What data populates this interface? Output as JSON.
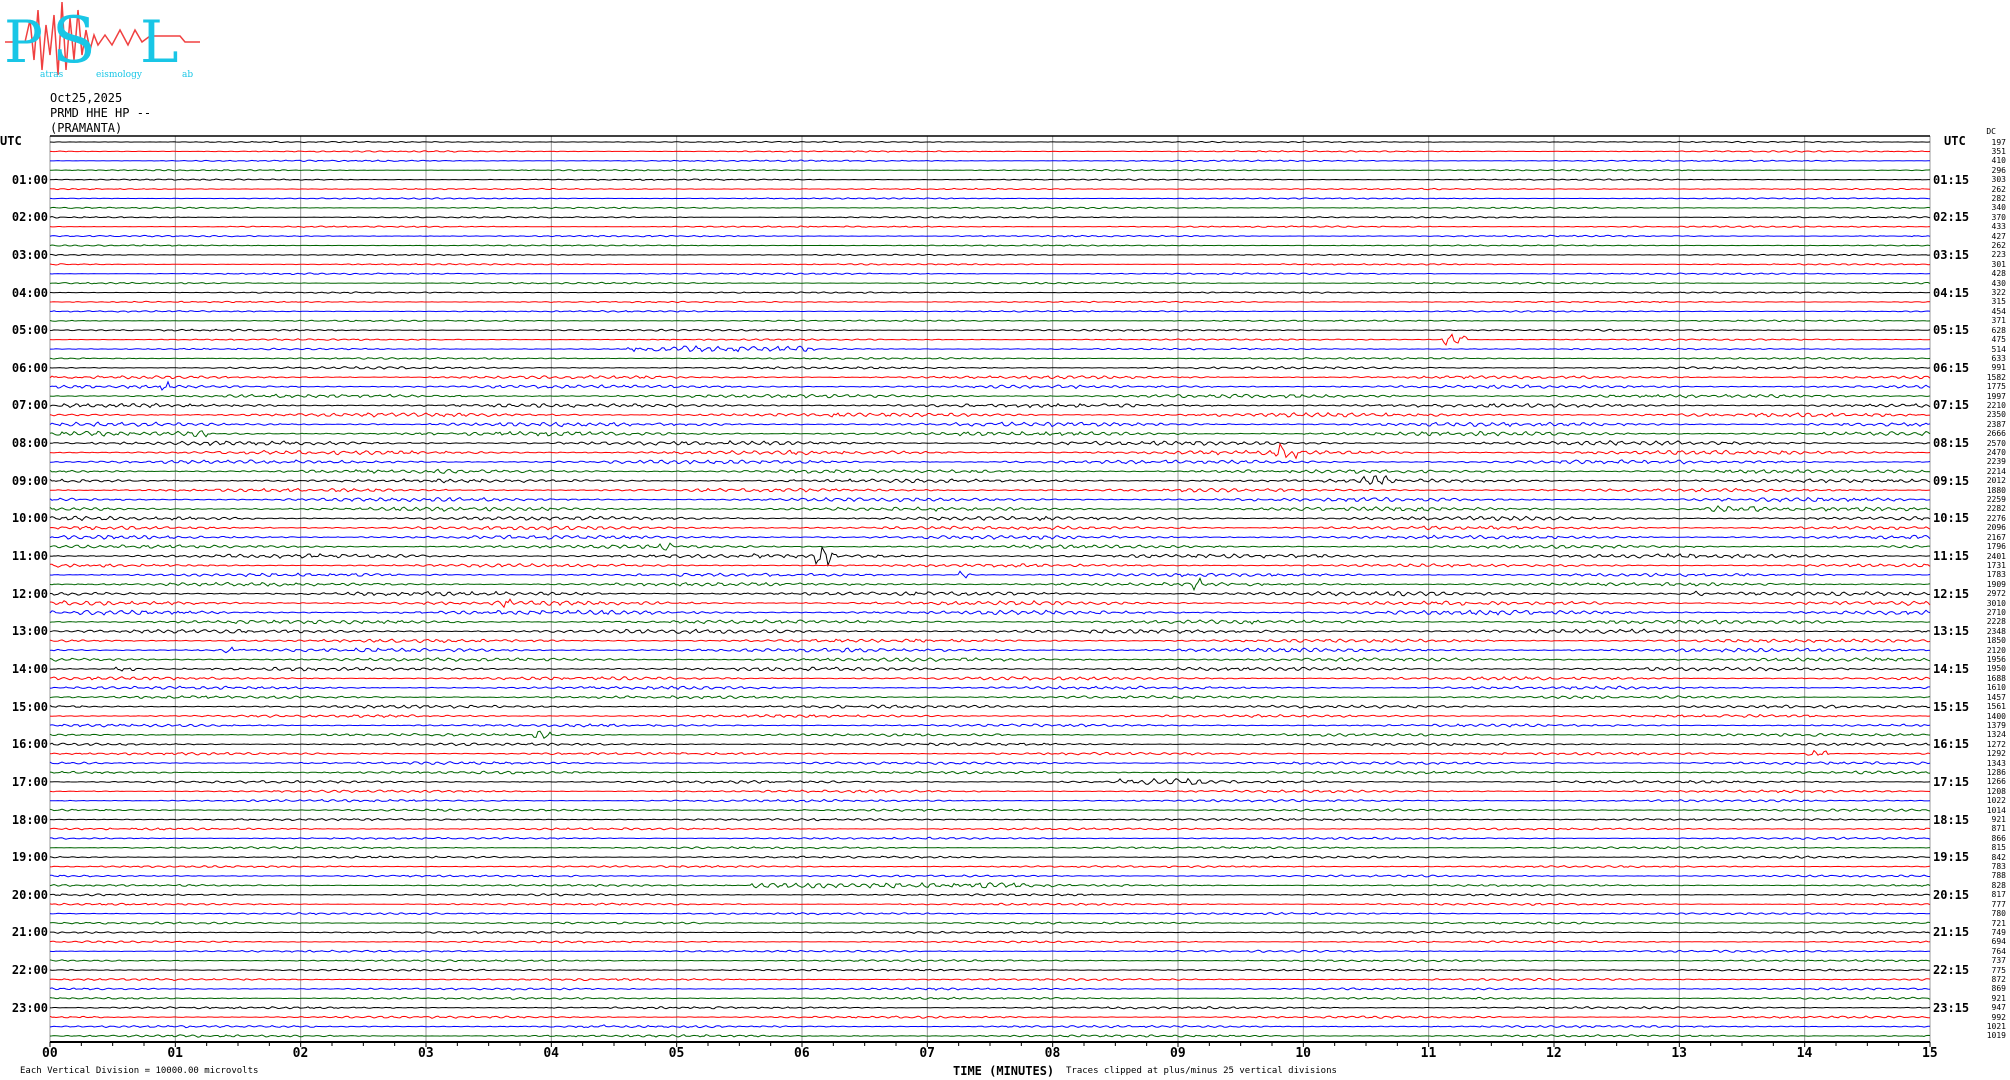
{
  "logo": {
    "text": "Patras Seismology Lab",
    "colors": {
      "letters": "#19c6e6",
      "wave": "#f04040"
    }
  },
  "header": {
    "date": "Oct25,2025",
    "station": "PRMD HHE HP --",
    "site": "(PRAMANTA)"
  },
  "chart_data": {
    "type": "line",
    "subtype": "helicorder",
    "xlabel": "TIME (MINUTES)",
    "x_ticks": [
      "00",
      "01",
      "02",
      "03",
      "04",
      "05",
      "06",
      "07",
      "08",
      "09",
      "10",
      "11",
      "12",
      "13",
      "14",
      "15"
    ],
    "xlim": [
      0,
      15
    ],
    "grid": true,
    "trace_colors": [
      "#000000",
      "#ff0000",
      "#0000ff",
      "#006400"
    ],
    "left_axis_title": "UTC",
    "right_axis_title": "UTC",
    "right_column_title": "DC",
    "left_labels": [
      "01:00",
      "02:00",
      "03:00",
      "04:00",
      "05:00",
      "06:00",
      "07:00",
      "08:00",
      "09:00",
      "10:00",
      "11:00",
      "12:00",
      "13:00",
      "14:00",
      "15:00",
      "16:00",
      "17:00",
      "18:00",
      "19:00",
      "20:00",
      "21:00",
      "22:00",
      "23:00"
    ],
    "right_labels": [
      "01:15",
      "02:15",
      "03:15",
      "04:15",
      "05:15",
      "06:15",
      "07:15",
      "08:15",
      "09:15",
      "10:15",
      "11:15",
      "12:15",
      "13:15",
      "14:15",
      "15:15",
      "16:15",
      "17:15",
      "18:15",
      "19:15",
      "20:15",
      "21:15",
      "22:15",
      "23:15"
    ],
    "row_values": [
      197,
      351,
      410,
      296,
      303,
      262,
      282,
      340,
      370,
      433,
      427,
      262,
      223,
      301,
      428,
      430,
      322,
      315,
      454,
      371,
      628,
      475,
      514,
      633,
      991,
      1582,
      1775,
      1997,
      2210,
      2350,
      2387,
      2666,
      2570,
      2470,
      2239,
      2214,
      2012,
      1880,
      2259,
      2282,
      2276,
      2096,
      2167,
      1796,
      2401,
      1731,
      1783,
      1909,
      2972,
      3010,
      2710,
      2228,
      2348,
      1850,
      2120,
      1956,
      1950,
      1688,
      1610,
      1457,
      1561,
      1400,
      1379,
      1324,
      1272,
      1292,
      1343,
      1286,
      1266,
      1208,
      1022,
      1014,
      921,
      871,
      866,
      815,
      842,
      783,
      788,
      828,
      817,
      777,
      780,
      721,
      749,
      694,
      764,
      737,
      775,
      872,
      869,
      921,
      947,
      992,
      1021,
      1019
    ],
    "events": [
      {
        "row": 21,
        "start_min": 11.1,
        "end_min": 11.3,
        "amp": 6
      },
      {
        "row": 22,
        "start_min": 4.6,
        "end_min": 6.1,
        "amp": 3
      },
      {
        "row": 26,
        "start_min": 0.85,
        "end_min": 0.95,
        "amp": 5
      },
      {
        "row": 31,
        "start_min": 1.0,
        "end_min": 1.25,
        "amp": 3
      },
      {
        "row": 33,
        "start_min": 9.78,
        "end_min": 9.95,
        "amp": 9
      },
      {
        "row": 34,
        "start_min": 12.15,
        "end_min": 12.25,
        "amp": 3
      },
      {
        "row": 36,
        "start_min": 10.4,
        "end_min": 10.7,
        "amp": 5
      },
      {
        "row": 39,
        "start_min": 13.2,
        "end_min": 13.7,
        "amp": 3
      },
      {
        "row": 43,
        "start_min": 4.85,
        "end_min": 4.95,
        "amp": 5
      },
      {
        "row": 44,
        "start_min": 6.1,
        "end_min": 6.25,
        "amp": 10
      },
      {
        "row": 46,
        "start_min": 7.25,
        "end_min": 7.35,
        "amp": 4
      },
      {
        "row": 47,
        "start_min": 9.1,
        "end_min": 9.2,
        "amp": 6
      },
      {
        "row": 48,
        "start_min": 13.12,
        "end_min": 13.2,
        "amp": 3
      },
      {
        "row": 49,
        "start_min": 3.58,
        "end_min": 3.68,
        "amp": 5
      },
      {
        "row": 54,
        "start_min": 1.38,
        "end_min": 1.46,
        "amp": 4
      },
      {
        "row": 56,
        "start_min": 0.5,
        "end_min": 0.75,
        "amp": 2
      },
      {
        "row": 60,
        "start_min": 13.88,
        "end_min": 13.92,
        "amp": 5
      },
      {
        "row": 63,
        "start_min": 3.85,
        "end_min": 4.0,
        "amp": 5
      },
      {
        "row": 65,
        "start_min": 14.0,
        "end_min": 14.2,
        "amp": 3
      },
      {
        "row": 68,
        "start_min": 8.5,
        "end_min": 9.2,
        "amp": 3
      },
      {
        "row": 79,
        "start_min": 5.6,
        "end_min": 8.0,
        "amp": 2.5
      },
      {
        "row": 94,
        "start_min": 4.25,
        "end_min": 4.45,
        "amp": 2
      }
    ]
  },
  "footer": {
    "scale_note": "Each Vertical Division = 10000.00 microvolts",
    "clip_note": "Traces clipped at plus/minus 25 vertical divisions"
  }
}
